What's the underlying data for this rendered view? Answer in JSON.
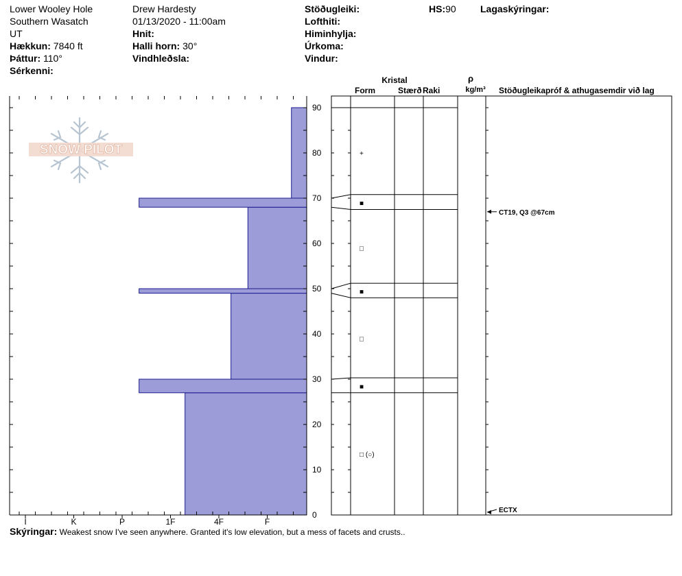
{
  "header": {
    "col1": {
      "location": "Lower Wooley Hole",
      "range": "Southern Wasatch",
      "state": "UT",
      "elevation_label": "Hækkun:",
      "elevation_value": "7840 ft",
      "aspect_label": "Þáttur:",
      "aspect_value": "110°",
      "special_label": "Sérkenni:"
    },
    "col2": {
      "observer": "Drew Hardesty",
      "datetime": "01/13/2020 - 11:00am",
      "coords_label": "Hnit:",
      "slope_label": "Halli horn:",
      "slope_value": "30°",
      "wind_loading_label": "Vindhleðsla:"
    },
    "col3": {
      "stability_label": "Stöðugleiki:",
      "air_temp_label": "Lofthiti:",
      "sky_label": "Himinhylja:",
      "precip_label": "Úrkoma:",
      "wind_label": "Vindur:"
    },
    "col4": {
      "hs_label": "HS:",
      "hs_value": "90",
      "legend_label": "Lagaskýringar:"
    }
  },
  "logo": {
    "text": "SNOW PILOT"
  },
  "footer": {
    "label": "Skýringar:",
    "text": "Weakest snow I've seen anywhere.  Granted it's low elevation, but a mess of facets and crusts.."
  },
  "colors": {
    "hardness_fill": "#9c9cd8",
    "hardness_stroke": "#1a1a8c"
  },
  "chart_data": {
    "type": "bar",
    "title": "",
    "xlabel": "",
    "ylabel": "",
    "hardness_ticks": [
      "I",
      "K",
      "P",
      "1F",
      "4F",
      "F"
    ],
    "ylim": [
      0,
      90
    ],
    "y_ticks": [
      0,
      10,
      20,
      30,
      40,
      50,
      60,
      70,
      80,
      90
    ],
    "layers": [
      {
        "bottom": 0,
        "top": 27,
        "hardness": "1F",
        "hardness_index": 3.3
      },
      {
        "bottom": 27,
        "top": 30,
        "hardness": "P+",
        "hardness_index": 2.35
      },
      {
        "bottom": 30,
        "top": 49,
        "hardness": "4F+",
        "hardness_index": 4.25
      },
      {
        "bottom": 49,
        "top": 50,
        "hardness": "P+",
        "hardness_index": 2.35
      },
      {
        "bottom": 50,
        "top": 68,
        "hardness": "4F",
        "hardness_index": 4.6
      },
      {
        "bottom": 68,
        "top": 70,
        "hardness": "P+",
        "hardness_index": 2.35
      },
      {
        "bottom": 70,
        "top": 90,
        "hardness": "F+",
        "hardness_index": 5.5
      }
    ],
    "crystal_table_headers": {
      "crystal": "Kristal",
      "form": "Form",
      "size": "Stærð",
      "moisture": "Raki",
      "density_symbol": "ρ",
      "density_unit": "kg/m³",
      "comments": "Stöðugleikapróf & athugasemdir við lag"
    },
    "grain_forms": [
      {
        "height": 80,
        "symbol": "+"
      },
      {
        "height": 69,
        "symbol": "■"
      },
      {
        "height": 59,
        "symbol": "□"
      },
      {
        "height": 49.5,
        "symbol": "■"
      },
      {
        "height": 39,
        "symbol": "□"
      },
      {
        "height": 28.5,
        "symbol": "■"
      },
      {
        "height": 13.5,
        "symbol": "□ (○)"
      }
    ],
    "stability_tests": [
      {
        "height": 67,
        "label": "CT19, Q3 @67cm"
      },
      {
        "height": 0,
        "label": "ECTX"
      }
    ]
  }
}
